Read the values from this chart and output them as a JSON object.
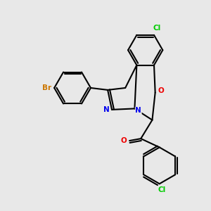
{
  "bg_color": "#e8e8e8",
  "bond_color": "#000000",
  "bond_width": 1.5,
  "atom_colors": {
    "Cl": "#00cc00",
    "Br": "#cc7700",
    "N": "#0000ee",
    "O": "#ee0000",
    "C": "#000000"
  },
  "figsize": [
    3.0,
    3.0
  ],
  "dpi": 100
}
